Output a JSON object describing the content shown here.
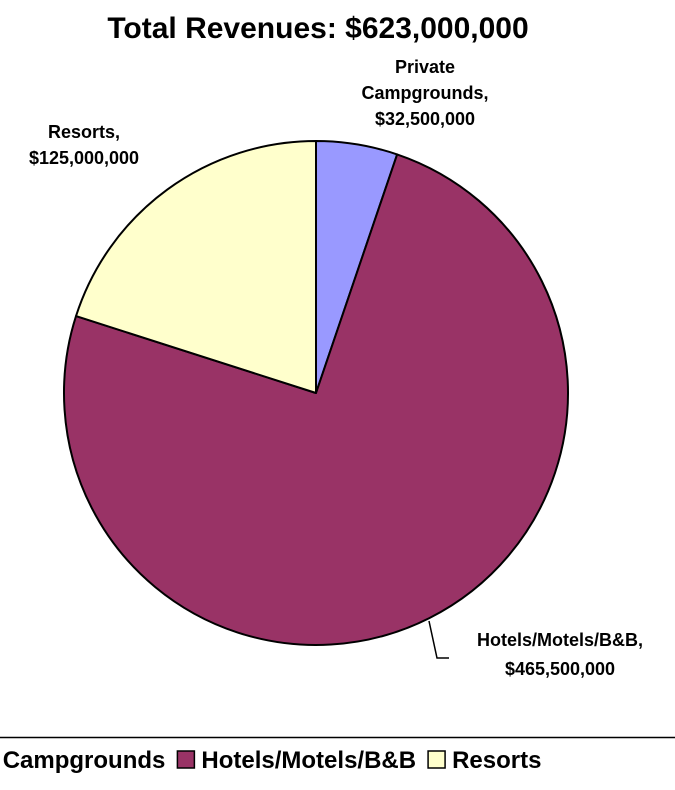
{
  "chart_data": {
    "type": "pie",
    "title": "Total Revenues: $623,000,000",
    "slices": [
      {
        "name": "Private Campgrounds",
        "value": 32500000,
        "label_lines": [
          "Private",
          "Campgrounds,",
          "$32,500,000"
        ],
        "color": "#9999ff"
      },
      {
        "name": "Hotels/Motels/B&B",
        "value": 465500000,
        "label_lines": [
          "Hotels/Motels/B&B,",
          "$465,500,000"
        ],
        "color": "#993366"
      },
      {
        "name": "Resorts",
        "value": 125000000,
        "label_lines": [
          "Resorts,",
          "$125,000,000"
        ],
        "color": "#ffffcc"
      }
    ],
    "legend": {
      "position": "bottom",
      "entries": [
        "Private Campgrounds",
        "Hotels/Motels/B&B",
        "Resorts"
      ]
    }
  }
}
